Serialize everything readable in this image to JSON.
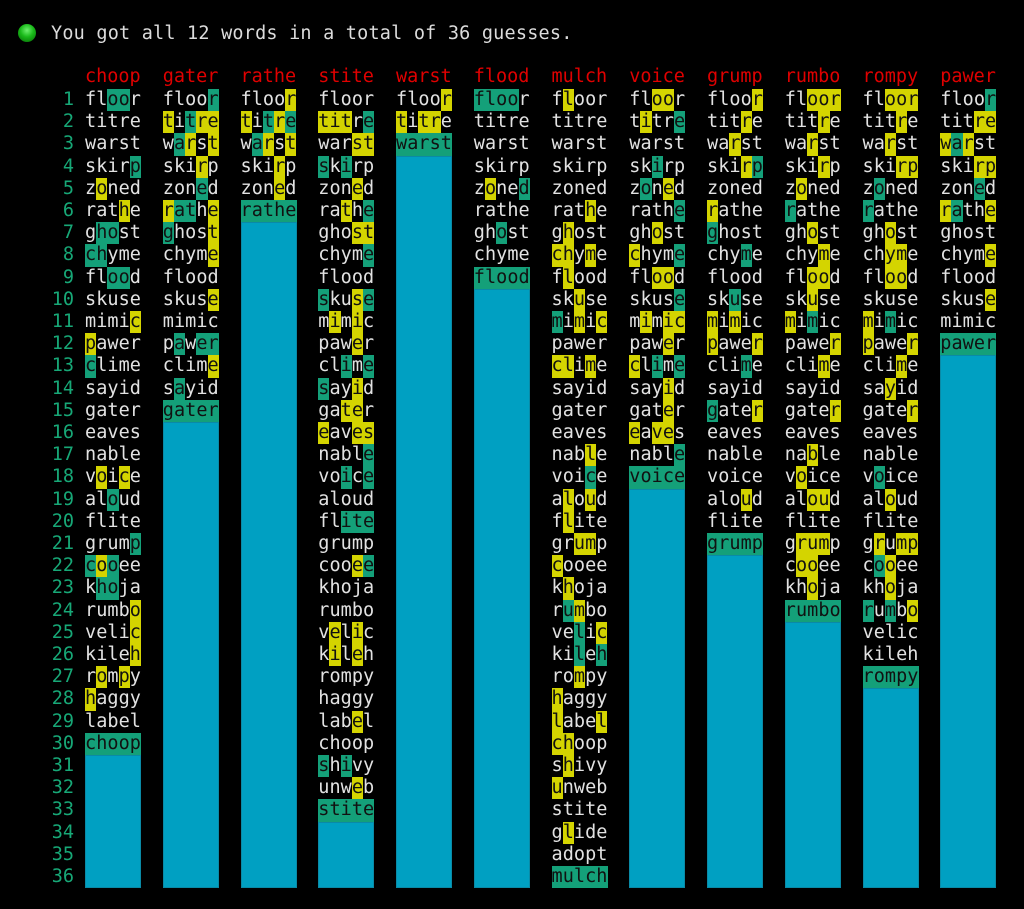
{
  "status": {
    "icon": "green-circle-icon",
    "message": "You got all 12 words in a total of 36 guesses."
  },
  "answers": [
    "choop",
    "gater",
    "rathe",
    "stite",
    "warst",
    "flood",
    "mulch",
    "voice",
    "grump",
    "rumbo",
    "rompy",
    "pawer"
  ],
  "guesses": [
    "floor",
    "titre",
    "warst",
    "skirp",
    "zoned",
    "rathe",
    "ghost",
    "chyme",
    "flood",
    "skuse",
    "mimic",
    "pawer",
    "clime",
    "sayid",
    "gater",
    "eaves",
    "nable",
    "voice",
    "aloud",
    "flite",
    "grump",
    "cooee",
    "khoja",
    "rumbo",
    "velic",
    "kileh",
    "rompy",
    "haggy",
    "label",
    "choop",
    "shivy",
    "unweb",
    "stite",
    "glide",
    "adopt",
    "mulch"
  ],
  "colors": {
    "exact": "#14a079",
    "present": "#d4d400",
    "solved_fill": "#00a0c2",
    "answer": "#e00000",
    "row_number": "#17a877"
  }
}
